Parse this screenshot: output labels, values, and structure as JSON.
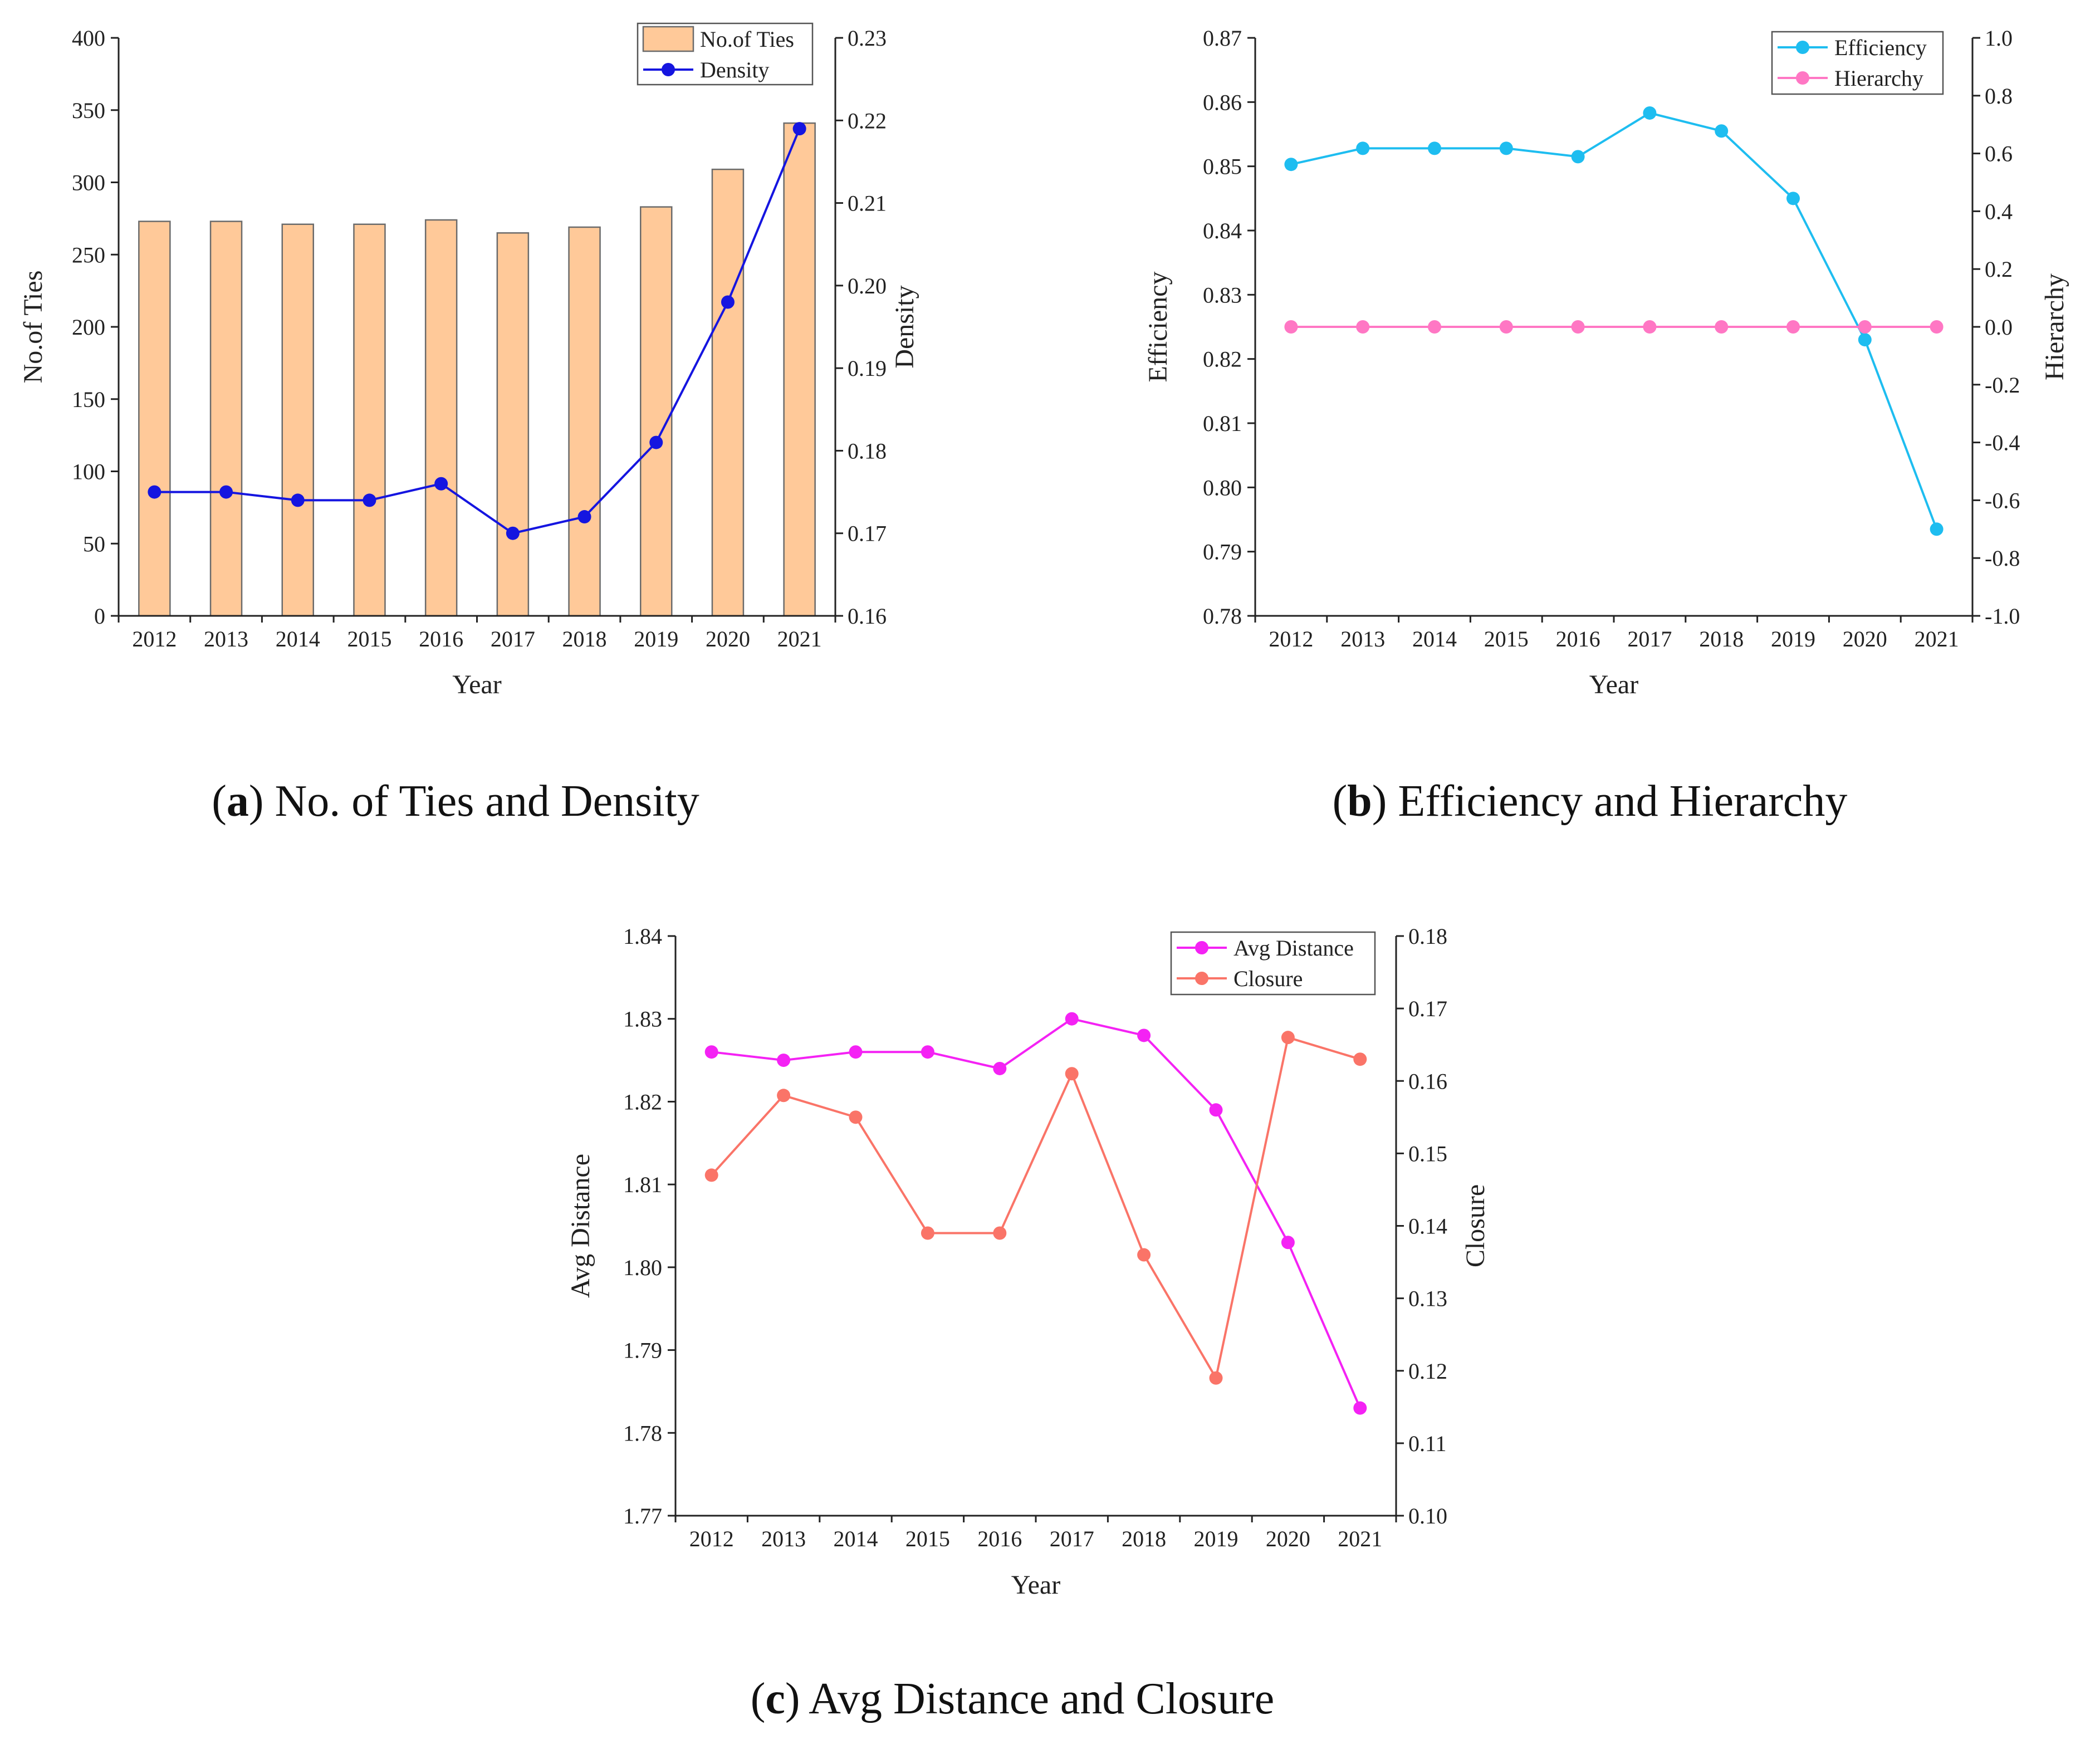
{
  "chart_data": [
    {
      "id": "a",
      "type": "bar+line",
      "caption": {
        "letter": "a",
        "text": " No. of Ties and Density"
      },
      "categories": [
        "2012",
        "2013",
        "2014",
        "2015",
        "2016",
        "2017",
        "2018",
        "2019",
        "2020",
        "2021"
      ],
      "xlabel": "Year",
      "left_axis": {
        "label": "No.of Ties",
        "ylim": [
          0,
          400
        ],
        "ticks": [
          "0",
          "50",
          "100",
          "150",
          "200",
          "250",
          "300",
          "350",
          "400"
        ]
      },
      "right_axis": {
        "label": "Density",
        "ylim": [
          0.16,
          0.23
        ],
        "ticks": [
          "0.16",
          "0.17",
          "0.18",
          "0.19",
          "0.20",
          "0.21",
          "0.22",
          "0.23"
        ]
      },
      "series": [
        {
          "name": "No.of Ties",
          "kind": "bar",
          "axis": "left",
          "color": "#FFC999",
          "edge": "#6b6b6b",
          "values": [
            273,
            273,
            271,
            271,
            274,
            265,
            269,
            283,
            309,
            341
          ]
        },
        {
          "name": "Density",
          "kind": "line",
          "axis": "right",
          "color": "#1515E0",
          "values": [
            0.175,
            0.175,
            0.174,
            0.174,
            0.176,
            0.17,
            0.172,
            0.181,
            0.198,
            0.219
          ]
        }
      ],
      "legend_position": "top-right"
    },
    {
      "id": "b",
      "type": "line",
      "caption": {
        "letter": "b",
        "text": " Efficiency and Hierarchy"
      },
      "categories": [
        "2012",
        "2013",
        "2014",
        "2015",
        "2016",
        "2017",
        "2018",
        "2019",
        "2020",
        "2021"
      ],
      "xlabel": "Year",
      "left_axis": {
        "label": "Efficiency",
        "ylim": [
          0.78,
          0.87
        ],
        "ticks": [
          "0.78",
          "0.79",
          "0.80",
          "0.81",
          "0.82",
          "0.83",
          "0.84",
          "0.85",
          "0.86",
          "0.87"
        ]
      },
      "right_axis": {
        "label": "Hierarchy",
        "ylim": [
          -1.0,
          1.0
        ],
        "ticks": [
          "-1.0",
          "-0.8",
          "-0.6",
          "-0.4",
          "-0.2",
          "0.0",
          "0.2",
          "0.4",
          "0.6",
          "0.8",
          "1.0"
        ]
      },
      "series": [
        {
          "name": "Efficiency",
          "kind": "line",
          "axis": "left",
          "color": "#1EBDF0",
          "values": [
            0.8503,
            0.8528,
            0.8528,
            0.8528,
            0.8515,
            0.8583,
            0.8555,
            0.845,
            0.823,
            0.7935
          ]
        },
        {
          "name": "Hierarchy",
          "kind": "line",
          "axis": "right",
          "color": "#FF77C4",
          "values": [
            0,
            0,
            0,
            0,
            0,
            0,
            0,
            0,
            0,
            0
          ]
        }
      ],
      "legend_position": "top-right"
    },
    {
      "id": "c",
      "type": "line",
      "caption": {
        "letter": "c",
        "text": " Avg Distance and Closure"
      },
      "categories": [
        "2012",
        "2013",
        "2014",
        "2015",
        "2016",
        "2017",
        "2018",
        "2019",
        "2020",
        "2021"
      ],
      "xlabel": "Year",
      "left_axis": {
        "label": "Avg Distance",
        "ylim": [
          1.77,
          1.84
        ],
        "ticks": [
          "1.77",
          "1.78",
          "1.79",
          "1.80",
          "1.81",
          "1.82",
          "1.83",
          "1.84"
        ]
      },
      "right_axis": {
        "label": "Closure",
        "ylim": [
          0.1,
          0.18
        ],
        "ticks": [
          "0.10",
          "0.11",
          "0.12",
          "0.13",
          "0.14",
          "0.15",
          "0.16",
          "0.17",
          "0.18"
        ]
      },
      "series": [
        {
          "name": "Avg Distance",
          "kind": "line",
          "axis": "left",
          "color": "#F422F4",
          "values": [
            1.826,
            1.825,
            1.826,
            1.826,
            1.824,
            1.83,
            1.828,
            1.819,
            1.803,
            1.783
          ]
        },
        {
          "name": "Closure",
          "kind": "line",
          "axis": "right",
          "color": "#FA7468",
          "values": [
            0.147,
            0.158,
            0.155,
            0.139,
            0.139,
            0.161,
            0.136,
            0.119,
            0.166,
            0.163
          ]
        }
      ],
      "legend_position": "top-right"
    }
  ]
}
